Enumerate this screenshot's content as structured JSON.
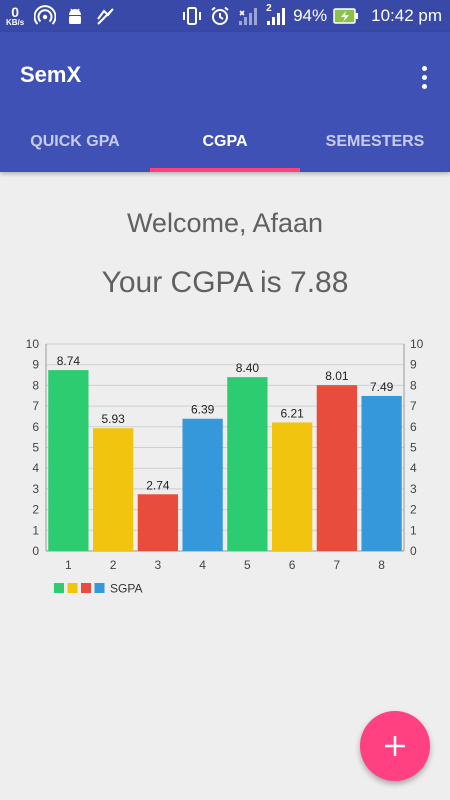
{
  "status_bar": {
    "net_speed_value": "0",
    "net_speed_unit": "KB/s",
    "battery_percent": "94%",
    "time": "10:42 pm",
    "sim_badge": "2"
  },
  "app": {
    "title": "SemX"
  },
  "tabs": [
    {
      "label": "QUICK GPA",
      "active": false
    },
    {
      "label": "CGPA",
      "active": true
    },
    {
      "label": "SEMESTERS",
      "active": false
    }
  ],
  "content": {
    "welcome": "Welcome, Afaan",
    "cgpa_text": "Your CGPA is 7.88"
  },
  "chart_data": {
    "type": "bar",
    "categories": [
      "1",
      "2",
      "3",
      "4",
      "5",
      "6",
      "7",
      "8"
    ],
    "values": [
      8.74,
      5.93,
      2.74,
      6.39,
      8.4,
      6.21,
      8.01,
      7.49
    ],
    "data_labels": [
      "8.74",
      "5.93",
      "2.74",
      "6.39",
      "8.40",
      "6.21",
      "8.01",
      "7.49"
    ],
    "bar_colors": [
      "#2ecc71",
      "#f1c40f",
      "#e74c3c",
      "#3498db",
      "#2ecc71",
      "#f1c40f",
      "#e74c3c",
      "#3498db"
    ],
    "ylim": [
      0,
      10
    ],
    "yticks": [
      "0",
      "1",
      "2",
      "3",
      "4",
      "5",
      "6",
      "7",
      "8",
      "9",
      "10"
    ],
    "grid": true,
    "axis_right": true,
    "legend": {
      "label": "SGPA",
      "placement": "bottom-left",
      "colors": [
        "#2ecc71",
        "#f1c40f",
        "#e74c3c",
        "#3498db"
      ]
    }
  },
  "colors": {
    "status_bar": "#3849a8",
    "primary": "#3f51b5",
    "accent": "#ff4081"
  },
  "icons": {
    "fab": "plus-icon"
  }
}
